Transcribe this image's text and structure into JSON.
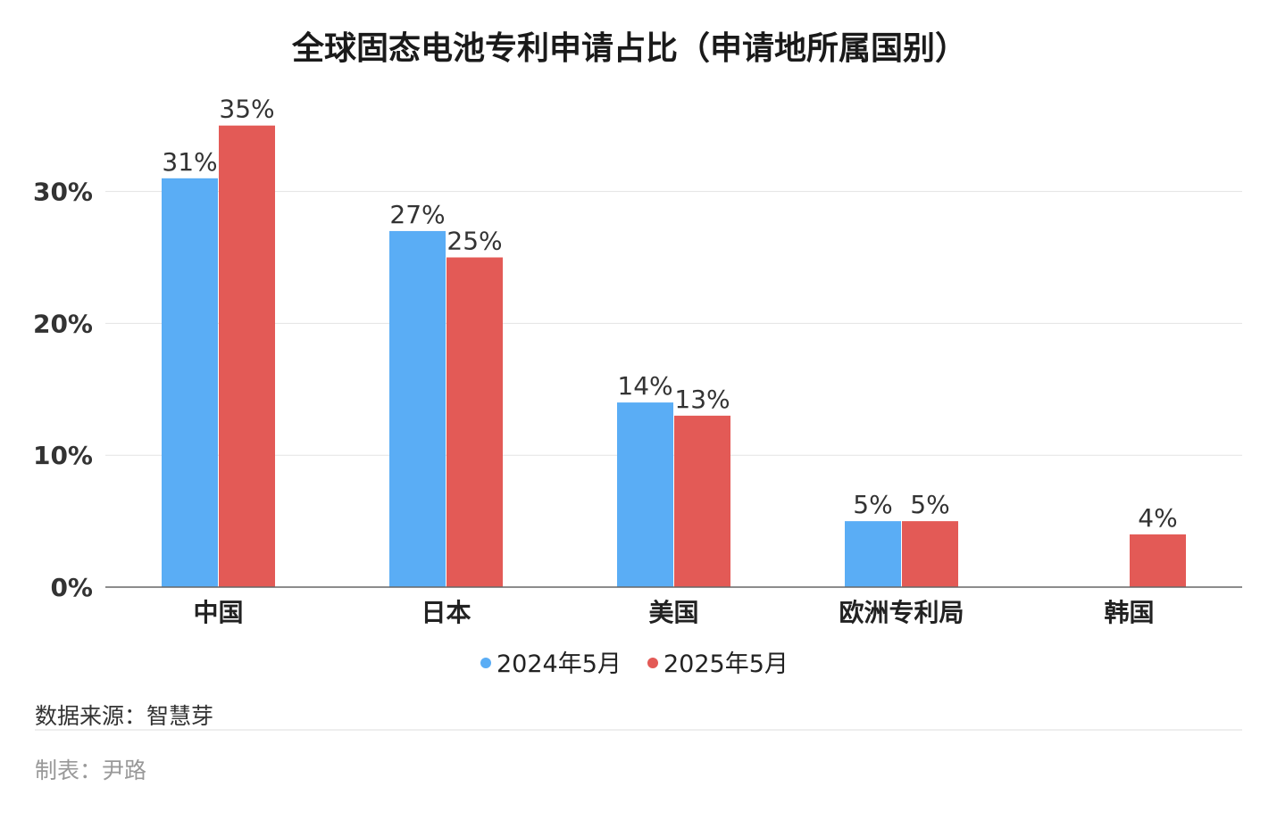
{
  "chart_data": {
    "type": "bar",
    "title": "全球固态电池专利申请占比（申请地所属国别）",
    "categories": [
      "中国",
      "日本",
      "美国",
      "欧洲专利局",
      "韩国"
    ],
    "series": [
      {
        "name": "2024年5月",
        "color": "#5aadf5",
        "values": [
          31,
          27,
          14,
          5,
          null
        ],
        "labels": [
          "31%",
          "27%",
          "14%",
          "5%",
          ""
        ]
      },
      {
        "name": "2025年5月",
        "color": "#e35a56",
        "values": [
          35,
          25,
          13,
          5,
          4
        ],
        "labels": [
          "35%",
          "25%",
          "13%",
          "5%",
          "4%"
        ]
      }
    ],
    "yticks": [
      0,
      10,
      20,
      30
    ],
    "ytick_labels": [
      "0%",
      "10%",
      "20%",
      "30%"
    ],
    "ylim": [
      0,
      35
    ],
    "grid": true,
    "legend_position": "bottom-center",
    "xlabel": "",
    "ylabel": ""
  },
  "footer": {
    "source": "数据来源：智慧芽",
    "maker": "制表：尹路"
  }
}
